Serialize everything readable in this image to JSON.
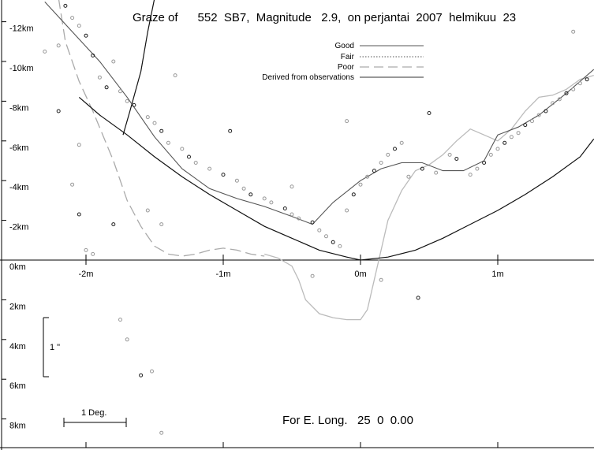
{
  "chart_data": {
    "type": "line",
    "title": "Graze of      552  SB7,  Magnitude   2.9,  on perjantai  2007  helmikuu  23",
    "footer": "For E. Long.   25  0  0.00",
    "x_axis": {
      "range": [
        -2.6,
        1.7
      ],
      "ticks": [
        -2,
        -1,
        0,
        1
      ],
      "tick_labels": [
        "-2m",
        "-1m",
        "0m",
        "1m"
      ]
    },
    "y_axis": {
      "range": [
        -8.5,
        13.2
      ],
      "ticks": [
        12,
        10,
        8,
        6,
        4,
        2,
        0,
        -2,
        -4,
        -6,
        -8
      ],
      "tick_labels": [
        "-12km",
        "-10km",
        "-8km",
        "-6km",
        "-4km",
        "-2km",
        "0km",
        "2km",
        "4km",
        "6km",
        "8km"
      ]
    },
    "legend": {
      "placement": "top-right",
      "entries": [
        {
          "label": "Good",
          "style": "solid"
        },
        {
          "label": "Fair",
          "style": "dotted"
        },
        {
          "label": "Poor",
          "style": "dashed"
        },
        {
          "label": "Derived from observations",
          "style": "solid"
        }
      ]
    },
    "scale_bars": {
      "vertical_label": "1 \"",
      "vertical_km": [
        -2.85,
        -5.85
      ],
      "horizontal_label": "1 Deg.",
      "horizontal_min": [
        -2.13,
        -1.7
      ]
    },
    "limit_curve": {
      "x": [
        -2.05,
        -1.9,
        -1.7,
        -1.5,
        -1.3,
        -1.1,
        -0.9,
        -0.7,
        -0.5,
        -0.3,
        -0.1,
        0.0,
        0.2,
        0.4,
        0.6,
        0.8,
        1.0,
        1.2,
        1.4,
        1.6,
        1.7
      ],
      "y": [
        8.2,
        7.3,
        6.3,
        5.2,
        4.2,
        3.3,
        2.5,
        1.7,
        1.1,
        0.5,
        0.15,
        0.0,
        0.15,
        0.5,
        1.1,
        1.8,
        2.5,
        3.3,
        4.2,
        5.2,
        6.1
      ]
    },
    "limit_curve_left": {
      "x": [
        -1.73,
        -1.68,
        -1.6,
        -1.55,
        -1.5
      ],
      "y": [
        6.3,
        7.5,
        9.5,
        11.5,
        13.2
      ]
    },
    "derived_profile": {
      "x": [
        -2.3,
        -2.1,
        -1.9,
        -1.7,
        -1.5,
        -1.3,
        -1.1,
        -0.9,
        -0.7,
        -0.5,
        -0.35,
        -0.2,
        0.0,
        0.15,
        0.3,
        0.45,
        0.6,
        0.75,
        0.9,
        1.0,
        1.15,
        1.3,
        1.5,
        1.7
      ],
      "y": [
        13.0,
        11.5,
        10.0,
        8.2,
        6.2,
        4.6,
        3.6,
        3.1,
        2.7,
        2.2,
        1.8,
        2.9,
        4.0,
        4.6,
        4.9,
        4.9,
        4.5,
        4.5,
        5.0,
        6.3,
        6.7,
        7.3,
        8.4,
        9.6
      ]
    },
    "poor_profile_left": {
      "x": [
        -2.2,
        -2.15,
        -2.05,
        -1.95,
        -1.8,
        -1.7,
        -1.6,
        -1.5,
        -1.4,
        -1.3,
        -1.2,
        -1.1,
        -1.0,
        -0.9,
        -0.8,
        -0.7
      ],
      "y": [
        13.2,
        11.0,
        9.0,
        7.5,
        5.0,
        3.0,
        1.7,
        0.7,
        0.3,
        0.2,
        0.3,
        0.5,
        0.6,
        0.5,
        0.3,
        0.2
      ]
    },
    "fair_profile": {
      "x": [
        -0.7,
        -0.6,
        -0.5,
        -0.45,
        -0.4,
        -0.3,
        -0.2,
        -0.1,
        0.0,
        0.05,
        0.1,
        0.15,
        0.2,
        0.3,
        0.4,
        0.5,
        0.6,
        0.7,
        0.8,
        0.9,
        1.0,
        1.1,
        1.2,
        1.3,
        1.4,
        1.5,
        1.6,
        1.7
      ],
      "y": [
        0.3,
        0.1,
        -0.3,
        -1.0,
        -2.0,
        -2.7,
        -2.9,
        -3.0,
        -3.0,
        -2.5,
        -1.0,
        0.5,
        2.0,
        3.5,
        4.5,
        4.8,
        5.3,
        6.0,
        6.6,
        6.3,
        6.0,
        6.6,
        7.5,
        8.2,
        8.3,
        8.6,
        9.1,
        9.3
      ]
    },
    "observations": [
      {
        "x": -2.15,
        "y": 12.8
      },
      {
        "x": -2.1,
        "y": 12.2
      },
      {
        "x": -2.05,
        "y": 11.8
      },
      {
        "x": -2.0,
        "y": 11.3
      },
      {
        "x": -2.2,
        "y": 10.8
      },
      {
        "x": -2.3,
        "y": 10.5
      },
      {
        "x": -1.95,
        "y": 10.3
      },
      {
        "x": -1.8,
        "y": 10.0
      },
      {
        "x": -1.9,
        "y": 9.2
      },
      {
        "x": -1.85,
        "y": 8.7
      },
      {
        "x": -1.75,
        "y": 8.5
      },
      {
        "x": -1.7,
        "y": 8.0
      },
      {
        "x": -1.65,
        "y": 7.8
      },
      {
        "x": -1.55,
        "y": 7.2
      },
      {
        "x": -1.5,
        "y": 6.9
      },
      {
        "x": -1.45,
        "y": 6.5
      },
      {
        "x": -1.4,
        "y": 5.9
      },
      {
        "x": -1.3,
        "y": 5.6
      },
      {
        "x": -1.25,
        "y": 5.2
      },
      {
        "x": -1.2,
        "y": 4.9
      },
      {
        "x": -1.1,
        "y": 4.6
      },
      {
        "x": -1.0,
        "y": 4.3
      },
      {
        "x": -0.9,
        "y": 4.0
      },
      {
        "x": -0.85,
        "y": 3.6
      },
      {
        "x": -0.8,
        "y": 3.3
      },
      {
        "x": -0.7,
        "y": 3.1
      },
      {
        "x": -0.65,
        "y": 2.9
      },
      {
        "x": -0.55,
        "y": 2.6
      },
      {
        "x": -0.5,
        "y": 2.3
      },
      {
        "x": -0.45,
        "y": 2.1
      },
      {
        "x": -0.35,
        "y": 1.9
      },
      {
        "x": -0.3,
        "y": 1.5
      },
      {
        "x": -0.25,
        "y": 1.2
      },
      {
        "x": -0.2,
        "y": 0.9
      },
      {
        "x": -0.15,
        "y": 0.7
      },
      {
        "x": -0.1,
        "y": 2.5
      },
      {
        "x": -0.05,
        "y": 3.3
      },
      {
        "x": 0.0,
        "y": 3.8
      },
      {
        "x": 0.05,
        "y": 4.2
      },
      {
        "x": 0.1,
        "y": 4.5
      },
      {
        "x": 0.15,
        "y": 4.9
      },
      {
        "x": 0.2,
        "y": 5.3
      },
      {
        "x": 0.25,
        "y": 5.6
      },
      {
        "x": 0.3,
        "y": 5.9
      },
      {
        "x": 0.35,
        "y": 4.2
      },
      {
        "x": 0.45,
        "y": 4.6
      },
      {
        "x": 0.55,
        "y": 4.4
      },
      {
        "x": 0.65,
        "y": 5.3
      },
      {
        "x": 0.7,
        "y": 5.1
      },
      {
        "x": 0.8,
        "y": 4.3
      },
      {
        "x": 0.85,
        "y": 4.6
      },
      {
        "x": 0.9,
        "y": 4.9
      },
      {
        "x": 0.95,
        "y": 5.3
      },
      {
        "x": 1.0,
        "y": 5.6
      },
      {
        "x": 1.05,
        "y": 5.9
      },
      {
        "x": 1.1,
        "y": 6.2
      },
      {
        "x": 1.15,
        "y": 6.4
      },
      {
        "x": 1.2,
        "y": 6.8
      },
      {
        "x": 1.25,
        "y": 7.0
      },
      {
        "x": 1.3,
        "y": 7.3
      },
      {
        "x": 1.35,
        "y": 7.5
      },
      {
        "x": 1.4,
        "y": 7.9
      },
      {
        "x": 1.45,
        "y": 8.1
      },
      {
        "x": 1.5,
        "y": 8.4
      },
      {
        "x": 1.55,
        "y": 8.6
      },
      {
        "x": 1.6,
        "y": 8.9
      },
      {
        "x": 1.65,
        "y": 9.1
      },
      {
        "x": 1.55,
        "y": 11.5
      },
      {
        "x": -1.35,
        "y": 9.3
      },
      {
        "x": -0.95,
        "y": 6.5
      },
      {
        "x": -0.5,
        "y": 3.7
      },
      {
        "x": -0.1,
        "y": 7.0
      },
      {
        "x": 0.5,
        "y": 7.4
      },
      {
        "x": -1.55,
        "y": 2.5
      },
      {
        "x": -1.45,
        "y": 1.8
      },
      {
        "x": -1.8,
        "y": 1.8
      },
      {
        "x": -1.95,
        "y": 0.3
      },
      {
        "x": -2.0,
        "y": 0.5
      },
      {
        "x": -2.05,
        "y": 2.3
      },
      {
        "x": -2.1,
        "y": 3.8
      },
      {
        "x": -2.05,
        "y": 5.8
      },
      {
        "x": -2.2,
        "y": 7.5
      },
      {
        "x": -0.35,
        "y": -0.8
      },
      {
        "x": 0.15,
        "y": -1.0
      },
      {
        "x": 0.42,
        "y": -1.9
      },
      {
        "x": -1.75,
        "y": -3.0
      },
      {
        "x": -1.7,
        "y": -4.0
      },
      {
        "x": -1.6,
        "y": -5.8
      },
      {
        "x": -1.52,
        "y": -5.6
      },
      {
        "x": -1.45,
        "y": -8.7
      }
    ]
  }
}
